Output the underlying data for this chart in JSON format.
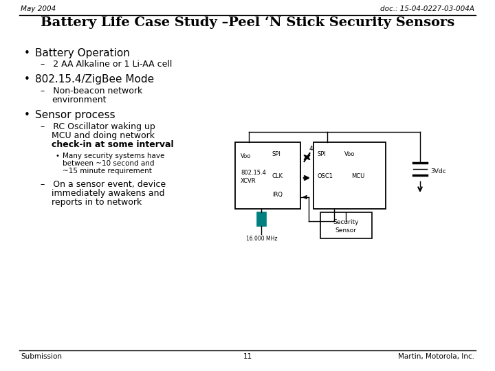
{
  "bg_color": "#ffffff",
  "header_left": "May 2004",
  "header_right": "doc.: 15-04-0227-03-004A",
  "title": "Battery Life Case Study –Peel ‘N Stick Security Sensors",
  "footer_left": "Submission",
  "footer_center": "11",
  "footer_right": "Martin, Motorola, Inc.",
  "text_color": "#000000",
  "line_color": "#000000",
  "crystal_color": "#008080",
  "header_fontsize": 7.5,
  "title_fontsize": 14,
  "bullet_fontsize": 11,
  "sub_fontsize": 9,
  "small_fontsize": 7.5,
  "footer_fontsize": 7.5,
  "diagram_label_fontsize": 6
}
